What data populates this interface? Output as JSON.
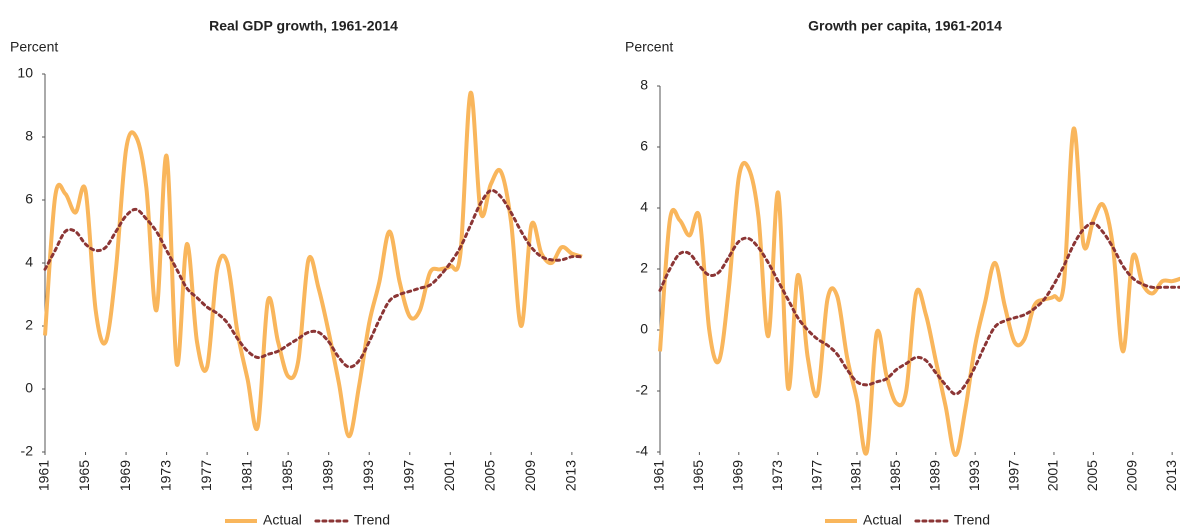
{
  "chart_data": [
    {
      "type": "line",
      "title": "Real GDP growth, 1961-2014",
      "y_label": "Percent",
      "x": [
        1961,
        1962,
        1963,
        1964,
        1965,
        1966,
        1967,
        1968,
        1969,
        1970,
        1971,
        1972,
        1973,
        1974,
        1975,
        1976,
        1977,
        1978,
        1979,
        1980,
        1981,
        1982,
        1983,
        1984,
        1985,
        1986,
        1987,
        1988,
        1989,
        1990,
        1991,
        1992,
        1993,
        1994,
        1995,
        1996,
        1997,
        1998,
        1999,
        2000,
        2001,
        2002,
        2003,
        2004,
        2005,
        2006,
        2007,
        2008,
        2009,
        2010,
        2011,
        2012,
        2013,
        2014
      ],
      "xlim": [
        1961,
        2014
      ],
      "xticks": [
        1961,
        1965,
        1969,
        1973,
        1977,
        1981,
        1985,
        1989,
        1993,
        1997,
        2001,
        2005,
        2009,
        2013
      ],
      "ylim": [
        -2,
        10
      ],
      "yticks": [
        -2,
        0,
        2,
        4,
        6,
        8,
        10
      ],
      "legend": "bottom",
      "series": [
        {
          "name": "Actual",
          "color": "#f9b65c",
          "line_style": "solid",
          "values": [
            1.7,
            6.1,
            6.2,
            5.6,
            6.3,
            2.5,
            1.5,
            3.8,
            7.6,
            8.0,
            6.4,
            2.5,
            7.4,
            0.8,
            4.6,
            1.5,
            0.7,
            3.8,
            4.0,
            1.8,
            0.3,
            -1.2,
            2.8,
            1.5,
            0.4,
            0.9,
            4.1,
            3.2,
            1.8,
            0.2,
            -1.5,
            0.1,
            2.1,
            3.4,
            5.0,
            3.4,
            2.3,
            2.5,
            3.7,
            3.8,
            3.9,
            4.3,
            9.4,
            5.6,
            6.5,
            6.9,
            5.3,
            2.0,
            5.2,
            4.3,
            4.0,
            4.5,
            4.3,
            4.2
          ]
        },
        {
          "name": "Trend",
          "color": "#8b3535",
          "line_style": "dotted",
          "values": [
            3.8,
            4.4,
            5.0,
            5.0,
            4.6,
            4.4,
            4.5,
            5.0,
            5.5,
            5.7,
            5.4,
            5.0,
            4.4,
            3.8,
            3.2,
            2.9,
            2.6,
            2.4,
            2.1,
            1.6,
            1.2,
            1.0,
            1.1,
            1.2,
            1.4,
            1.6,
            1.8,
            1.8,
            1.5,
            1.0,
            0.7,
            0.9,
            1.5,
            2.2,
            2.8,
            3.0,
            3.1,
            3.2,
            3.3,
            3.6,
            4.0,
            4.5,
            5.2,
            5.9,
            6.3,
            6.1,
            5.6,
            5.0,
            4.5,
            4.2,
            4.1,
            4.1,
            4.2,
            4.2
          ]
        }
      ]
    },
    {
      "type": "line",
      "title": "Growth per capita, 1961-2014",
      "y_label": "Percent",
      "x": [
        1961,
        1962,
        1963,
        1964,
        1965,
        1966,
        1967,
        1968,
        1969,
        1970,
        1971,
        1972,
        1973,
        1974,
        1975,
        1976,
        1977,
        1978,
        1979,
        1980,
        1981,
        1982,
        1983,
        1984,
        1985,
        1986,
        1987,
        1988,
        1989,
        1990,
        1991,
        1992,
        1993,
        1994,
        1995,
        1996,
        1997,
        1998,
        1999,
        2000,
        2001,
        2002,
        2003,
        2004,
        2005,
        2006,
        2007,
        2008,
        2009,
        2010,
        2011,
        2012,
        2013,
        2014
      ],
      "xlim": [
        1961,
        2014
      ],
      "xticks": [
        1961,
        1965,
        1969,
        1973,
        1977,
        1981,
        1985,
        1989,
        1993,
        1997,
        2001,
        2005,
        2009,
        2013
      ],
      "ylim": [
        -4,
        8
      ],
      "yticks": [
        -4,
        -2,
        0,
        2,
        4,
        6,
        8
      ],
      "legend": "bottom",
      "series": [
        {
          "name": "Actual",
          "color": "#f9b65c",
          "line_style": "solid",
          "values": [
            -0.7,
            3.6,
            3.6,
            3.1,
            3.7,
            0.0,
            -1.0,
            1.4,
            5.0,
            5.3,
            3.7,
            -0.2,
            4.5,
            -1.9,
            1.8,
            -0.9,
            -2.1,
            1.0,
            1.1,
            -0.9,
            -2.3,
            -4.0,
            -0.1,
            -1.5,
            -2.4,
            -2.0,
            1.2,
            0.5,
            -1.0,
            -2.5,
            -4.1,
            -2.6,
            -0.5,
            0.9,
            2.2,
            0.8,
            -0.4,
            -0.3,
            0.8,
            1.0,
            1.1,
            1.5,
            6.6,
            2.8,
            3.6,
            4.1,
            2.7,
            -0.7,
            2.4,
            1.5,
            1.2,
            1.6,
            1.6,
            1.7
          ]
        },
        {
          "name": "Trend",
          "color": "#8b3535",
          "line_style": "dotted",
          "values": [
            1.3,
            2.0,
            2.5,
            2.5,
            2.1,
            1.8,
            1.9,
            2.4,
            2.9,
            3.0,
            2.7,
            2.2,
            1.6,
            1.0,
            0.4,
            0.0,
            -0.3,
            -0.5,
            -0.8,
            -1.3,
            -1.7,
            -1.8,
            -1.7,
            -1.6,
            -1.3,
            -1.1,
            -0.9,
            -1.0,
            -1.4,
            -1.8,
            -2.1,
            -1.8,
            -1.2,
            -0.5,
            0.1,
            0.3,
            0.4,
            0.5,
            0.7,
            1.0,
            1.5,
            2.1,
            2.8,
            3.3,
            3.5,
            3.2,
            2.7,
            2.1,
            1.7,
            1.5,
            1.4,
            1.4,
            1.4,
            1.4
          ]
        }
      ]
    }
  ]
}
